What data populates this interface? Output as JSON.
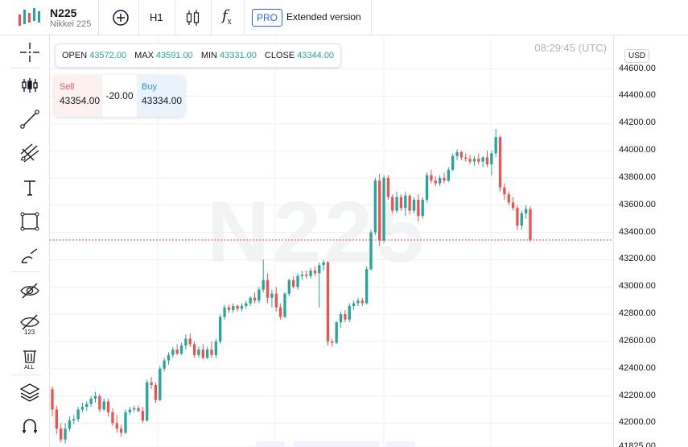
{
  "symbol": {
    "name": "N225",
    "description": "Nikkei 225"
  },
  "toolbar": {
    "interval": "H1",
    "pro_badge": "PRO",
    "extended_label": "Extended version",
    "icons": [
      "candles-logo-icon",
      "add-symbol-icon",
      "candlestick-type-icon",
      "indicators-fx-icon"
    ]
  },
  "left_tools": [
    "crosshair-icon",
    "bars-tool-icon",
    "trend-line-icon",
    "pitchfork-icon",
    "text-tool-icon",
    "rectangle-icon",
    "brush-icon",
    "hide-drawings-icon",
    "hide-indicators-icon",
    "remove-all-icon",
    "layers-icon",
    "magnet-icon"
  ],
  "time_label": "08:29:45 (UTC)",
  "watermark": "N225",
  "ohlc": {
    "open_label": "OPEN",
    "open": "43572.00",
    "max_label": "MAX",
    "max": "43591.00",
    "min_label": "MIN",
    "min": "43331.00",
    "close_label": "CLOSE",
    "close": "43344.00"
  },
  "trade": {
    "sell_label": "Sell",
    "sell_price": "43354.00",
    "spread": "-20.00",
    "buy_label": "Buy",
    "buy_price": "43334.00"
  },
  "currency": "USD",
  "colors": {
    "up": "#26a69a",
    "down": "#ef5350",
    "grid": "#eef0f3",
    "current_line": "#ef5350"
  },
  "chart_data": {
    "type": "candlestick",
    "current_price": 43344,
    "ylim": [
      41825,
      44840
    ],
    "y_ticks": [
      "44600.00",
      "44400.00",
      "44200.00",
      "44000.00",
      "43800.00",
      "43600.00",
      "43400.00",
      "43200.00",
      "43000.00",
      "42800.00",
      "42600.00",
      "42400.00",
      "42200.00",
      "42000.00",
      "41825.00"
    ],
    "y_tick_values": [
      44600,
      44400,
      44200,
      44000,
      43800,
      43600,
      43400,
      43200,
      43000,
      42800,
      42600,
      42400,
      42200,
      42000,
      41825
    ],
    "candles": [
      [
        42250,
        42270,
        42050,
        42100
      ],
      [
        42100,
        42130,
        41920,
        41960
      ],
      [
        41960,
        42000,
        41860,
        41880
      ],
      [
        41880,
        42000,
        41850,
        41960
      ],
      [
        41960,
        42050,
        41940,
        42020
      ],
      [
        42020,
        42060,
        41990,
        42030
      ],
      [
        42030,
        42120,
        42010,
        42100
      ],
      [
        42100,
        42150,
        42080,
        42120
      ],
      [
        42120,
        42160,
        42090,
        42140
      ],
      [
        42140,
        42200,
        42120,
        42180
      ],
      [
        42180,
        42230,
        42150,
        42200
      ],
      [
        42200,
        42210,
        42080,
        42100
      ],
      [
        42100,
        42180,
        42090,
        42160
      ],
      [
        42160,
        42180,
        42050,
        42080
      ],
      [
        42080,
        42110,
        41980,
        42000
      ],
      [
        42000,
        42060,
        41930,
        41960
      ],
      [
        41960,
        41990,
        41900,
        41930
      ],
      [
        41930,
        42100,
        41920,
        42080
      ],
      [
        42080,
        42120,
        42060,
        42100
      ],
      [
        42100,
        42130,
        42080,
        42110
      ],
      [
        42110,
        42130,
        42080,
        42090
      ],
      [
        42090,
        42120,
        42000,
        42020
      ],
      [
        42020,
        42320,
        42010,
        42300
      ],
      [
        42300,
        42340,
        42250,
        42280
      ],
      [
        42280,
        42300,
        42150,
        42170
      ],
      [
        42170,
        42420,
        42160,
        42400
      ],
      [
        42400,
        42480,
        42380,
        42460
      ],
      [
        42460,
        42520,
        42430,
        42500
      ],
      [
        42500,
        42560,
        42480,
        42540
      ],
      [
        42540,
        42580,
        42500,
        42510
      ],
      [
        42510,
        42590,
        42500,
        42570
      ],
      [
        42570,
        42650,
        42540,
        42620
      ],
      [
        42620,
        42660,
        42560,
        42580
      ],
      [
        42580,
        42600,
        42480,
        42500
      ],
      [
        42500,
        42560,
        42480,
        42540
      ],
      [
        42540,
        42580,
        42470,
        42480
      ],
      [
        42480,
        42560,
        42470,
        42540
      ],
      [
        42540,
        42600,
        42480,
        42500
      ],
      [
        42500,
        42620,
        42480,
        42600
      ],
      [
        42600,
        42800,
        42580,
        42780
      ],
      [
        42780,
        42870,
        42760,
        42850
      ],
      [
        42850,
        42870,
        42810,
        42830
      ],
      [
        42830,
        42880,
        42810,
        42860
      ],
      [
        42860,
        42870,
        42820,
        42840
      ],
      [
        42840,
        42880,
        42820,
        42860
      ],
      [
        42860,
        42900,
        42840,
        42880
      ],
      [
        42880,
        42930,
        42860,
        42920
      ],
      [
        42920,
        42960,
        42880,
        42900
      ],
      [
        42900,
        43000,
        42880,
        42980
      ],
      [
        42980,
        43200,
        42960,
        43050
      ],
      [
        43050,
        43100,
        42880,
        42920
      ],
      [
        42920,
        42980,
        42850,
        42950
      ],
      [
        42950,
        43000,
        42820,
        42850
      ],
      [
        42850,
        42880,
        42760,
        42780
      ],
      [
        42780,
        42960,
        42770,
        42950
      ],
      [
        42950,
        43060,
        42930,
        43050
      ],
      [
        43050,
        43080,
        42990,
        43000
      ],
      [
        43000,
        43100,
        42980,
        43080
      ],
      [
        43080,
        43120,
        43050,
        43090
      ],
      [
        43090,
        43120,
        43060,
        43080
      ],
      [
        43080,
        43140,
        43060,
        43120
      ],
      [
        43120,
        43150,
        43080,
        43100
      ],
      [
        43100,
        43180,
        42850,
        43160
      ],
      [
        43160,
        43200,
        43120,
        43180
      ],
      [
        43180,
        43190,
        42570,
        42600
      ],
      [
        42600,
        42620,
        42560,
        42590
      ],
      [
        42590,
        42750,
        42580,
        42740
      ],
      [
        42740,
        42820,
        42700,
        42800
      ],
      [
        42800,
        42830,
        42740,
        42760
      ],
      [
        42760,
        42880,
        42740,
        42860
      ],
      [
        42860,
        42900,
        42830,
        42880
      ],
      [
        42880,
        42920,
        42860,
        42900
      ],
      [
        42900,
        42920,
        42860,
        42880
      ],
      [
        42880,
        43150,
        42870,
        43130
      ],
      [
        43130,
        43420,
        43120,
        43400
      ],
      [
        43400,
        43800,
        43380,
        43780
      ],
      [
        43780,
        43830,
        43300,
        43340
      ],
      [
        43340,
        43820,
        43320,
        43800
      ],
      [
        43800,
        43820,
        43640,
        43660
      ],
      [
        43660,
        43680,
        43540,
        43560
      ],
      [
        43560,
        43700,
        43540,
        43660
      ],
      [
        43660,
        43680,
        43560,
        43580
      ],
      [
        43580,
        43700,
        43520,
        43670
      ],
      [
        43670,
        43680,
        43530,
        43560
      ],
      [
        43560,
        43660,
        43540,
        43640
      ],
      [
        43640,
        43680,
        43480,
        43520
      ],
      [
        43520,
        43660,
        43500,
        43640
      ],
      [
        43640,
        43840,
        43620,
        43820
      ],
      [
        43820,
        43860,
        43760,
        43780
      ],
      [
        43780,
        43810,
        43740,
        43760
      ],
      [
        43760,
        43820,
        43740,
        43800
      ],
      [
        43800,
        43840,
        43760,
        43780
      ],
      [
        43780,
        43880,
        43770,
        43860
      ],
      [
        43860,
        43980,
        43850,
        43960
      ],
      [
        43960,
        44010,
        43930,
        43990
      ],
      [
        43990,
        44000,
        43930,
        43950
      ],
      [
        43950,
        43980,
        43920,
        43940
      ],
      [
        43940,
        43970,
        43900,
        43920
      ],
      [
        43920,
        43960,
        43890,
        43940
      ],
      [
        43940,
        43980,
        43900,
        43920
      ],
      [
        43920,
        43960,
        43880,
        43950
      ],
      [
        43950,
        44000,
        43880,
        43900
      ],
      [
        43900,
        44000,
        43820,
        43980
      ],
      [
        43980,
        44160,
        43950,
        44100
      ],
      [
        44100,
        44110,
        43700,
        43730
      ],
      [
        43730,
        43760,
        43640,
        43680
      ],
      [
        43680,
        43700,
        43600,
        43620
      ],
      [
        43620,
        43660,
        43560,
        43580
      ],
      [
        43580,
        43600,
        43420,
        43450
      ],
      [
        43450,
        43560,
        43420,
        43540
      ],
      [
        43540,
        43600,
        43500,
        43572
      ],
      [
        43572,
        43591,
        43331,
        43344
      ]
    ]
  }
}
